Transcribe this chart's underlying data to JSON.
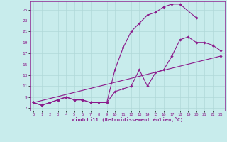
{
  "xlabel": "Windchill (Refroidissement éolien,°C)",
  "xlim": [
    -0.5,
    23.5
  ],
  "ylim": [
    6.5,
    26.5
  ],
  "yticks": [
    7,
    9,
    11,
    13,
    15,
    17,
    19,
    21,
    23,
    25
  ],
  "xticks": [
    0,
    1,
    2,
    3,
    4,
    5,
    6,
    7,
    8,
    9,
    10,
    11,
    12,
    13,
    14,
    15,
    16,
    17,
    18,
    19,
    20,
    21,
    22,
    23
  ],
  "background_color": "#c8ecec",
  "grid_color": "#b0d8d8",
  "line_color": "#8b1a8b",
  "line1_x": [
    0,
    1,
    2,
    3,
    4,
    5,
    6,
    7,
    8,
    9,
    10,
    11,
    12,
    13,
    14,
    15,
    16,
    17,
    18,
    19,
    20,
    21,
    22,
    23
  ],
  "line1_y": [
    8.0,
    7.5,
    8.0,
    8.5,
    9.0,
    8.5,
    8.5,
    8.0,
    8.0,
    8.0,
    10.0,
    10.5,
    11.0,
    14.0,
    11.0,
    13.5,
    14.0,
    16.5,
    19.5,
    20.0,
    19.0,
    19.0,
    18.5,
    17.5
  ],
  "line2_x": [
    0,
    1,
    2,
    3,
    4,
    5,
    6,
    7,
    8,
    9,
    10,
    11,
    12,
    13,
    14,
    15,
    16,
    17,
    18,
    20
  ],
  "line2_y": [
    8.0,
    7.5,
    8.0,
    8.5,
    9.0,
    8.5,
    8.5,
    8.0,
    8.0,
    8.0,
    14.0,
    18.0,
    21.0,
    22.5,
    24.0,
    24.5,
    25.5,
    26.0,
    26.0,
    23.5
  ],
  "line3_x": [
    0,
    23
  ],
  "line3_y": [
    8.0,
    16.5
  ]
}
